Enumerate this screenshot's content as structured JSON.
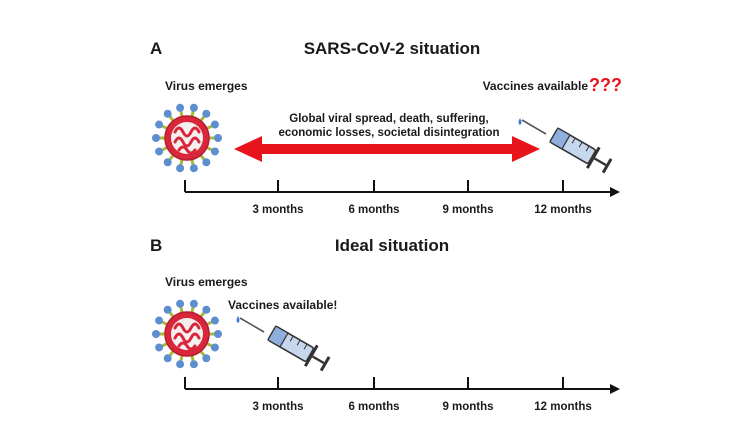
{
  "panel_a": {
    "letter": "A",
    "title": "SARS-CoV-2 situation",
    "virus_label": "Virus emerges",
    "vaccine_label": "Vaccines available",
    "vaccine_mark": "???",
    "arrow_text_line1": "Global viral spread, death, suffering,",
    "arrow_text_line2": "economic losses, societal disintegration",
    "ticks": [
      "3 months",
      "6 months",
      "9 months",
      "12 months"
    ]
  },
  "panel_b": {
    "letter": "B",
    "title": "Ideal situation",
    "virus_label": "Virus emerges",
    "vaccine_label": "Vaccines available!",
    "ticks": [
      "3 months",
      "6 months",
      "9 months",
      "12 months"
    ]
  },
  "colors": {
    "arrow": "#e8141b",
    "question_marks": "#e8141b",
    "virus_core": "#d9263a",
    "virus_spike": "#5d8ecf",
    "virus_stalk": "#a9b83a",
    "syringe_body": "#c7d7ee",
    "drop": "#3a7fd0"
  },
  "icons": [
    "virus-icon",
    "syringe-icon"
  ]
}
